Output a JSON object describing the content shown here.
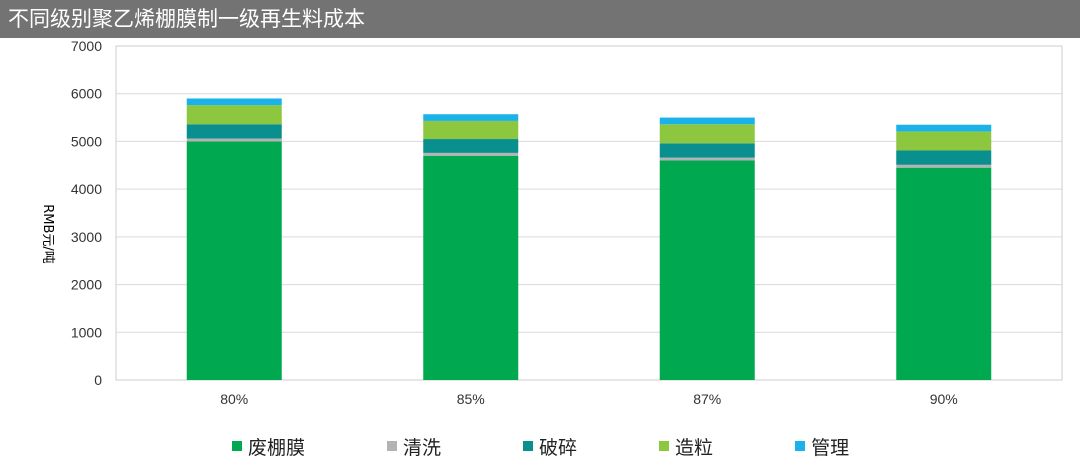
{
  "title": "不同级别聚乙烯棚膜制一级再生料成本",
  "chart_data": {
    "type": "bar",
    "stacked": true,
    "categories": [
      "80%",
      "85%",
      "87%",
      "90%"
    ],
    "ylabel": "RMB元/吨",
    "ylim": [
      0,
      7000
    ],
    "yticks": [
      0,
      1000,
      2000,
      3000,
      4000,
      5000,
      6000,
      7000
    ],
    "grid": true,
    "legend_position": "bottom",
    "series": [
      {
        "name": "废棚膜",
        "color": "#00a84f",
        "values": [
          5000,
          4700,
          4600,
          4450
        ]
      },
      {
        "name": "清洗",
        "color": "#b3b3b3",
        "values": [
          60,
          60,
          60,
          60
        ]
      },
      {
        "name": "破碎",
        "color": "#0a8f8f",
        "values": [
          300,
          290,
          300,
          300
        ]
      },
      {
        "name": "造粒",
        "color": "#8dc63f",
        "values": [
          400,
          380,
          400,
          400
        ]
      },
      {
        "name": "管理",
        "color": "#1ab2e8",
        "values": [
          140,
          140,
          140,
          140
        ]
      }
    ]
  }
}
